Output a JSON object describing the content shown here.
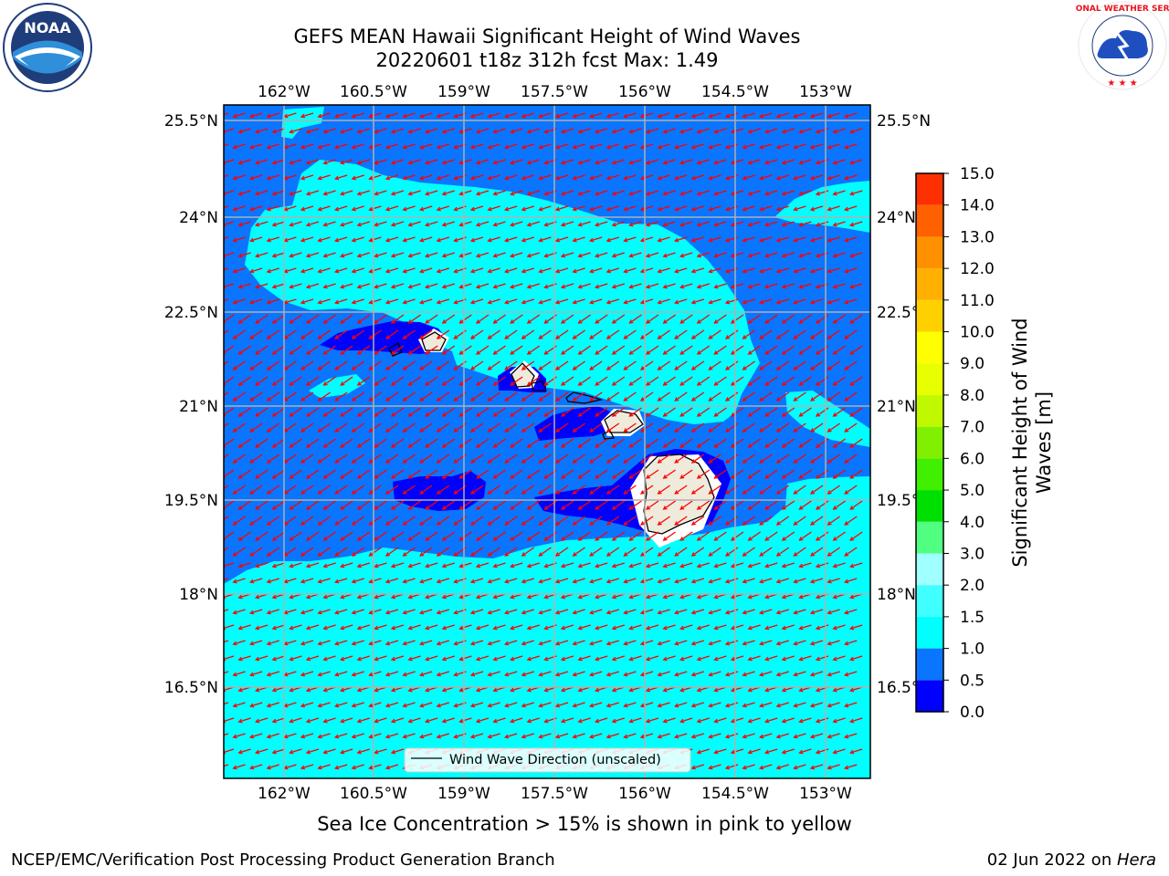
{
  "title": {
    "line1": "GEFS MEAN Hawaii Significant Height of Wind Waves",
    "line2": "20220601 t18z 312h fcst   Max: 1.49"
  },
  "logos": {
    "left": "NOAA",
    "left_ring": "NATIONAL OCEANIC AND ATMOSPHERIC ADMINISTRATION · U.S. DEPARTMENT OF COMMERCE",
    "right_ring": "NATIONAL WEATHER SERVICE"
  },
  "map": {
    "lon_labels": [
      "162°W",
      "160.5°W",
      "159°W",
      "157.5°W",
      "156°W",
      "154.5°W",
      "153°W"
    ],
    "lat_labels": [
      "25.5°N",
      "24°N",
      "22.5°N",
      "21°N",
      "19.5°N",
      "18°N",
      "16.5°N"
    ],
    "legend": "Wind Wave Direction (unscaled)",
    "colors": {
      "deep_blue": "#0000ff",
      "mid_blue": "#0a75ff",
      "cyan": "#00ffff",
      "land": "#efebdc",
      "arrow": "#ff0000",
      "grid": "#b0b0b0"
    }
  },
  "colorbar": {
    "label_line1": "Significant Height of Wind",
    "label_line2": "Waves [m]",
    "ticks": [
      "0.0",
      "0.5",
      "1.0",
      "1.5",
      "2.0",
      "3.0",
      "4.0",
      "5.0",
      "6.0",
      "7.0",
      "8.0",
      "9.0",
      "10.0",
      "11.0",
      "12.0",
      "13.0",
      "14.0",
      "15.0"
    ],
    "colors": [
      "#0000ff",
      "#0a75ff",
      "#00ffff",
      "#40ffff",
      "#a0ffff",
      "#50ff80",
      "#00e000",
      "#40f000",
      "#80f000",
      "#c0f800",
      "#e8ff00",
      "#ffff00",
      "#ffd000",
      "#ffb000",
      "#ff9000",
      "#ff6000",
      "#ff3000",
      "#ff0000"
    ]
  },
  "ice_note": "Sea Ice Concentration > 15% is shown in pink to yellow",
  "footer": {
    "left": "NCEP/EMC/Verification Post Processing Product Generation Branch",
    "right_prefix": "02 Jun 2022 on ",
    "right_host": "Hera"
  }
}
